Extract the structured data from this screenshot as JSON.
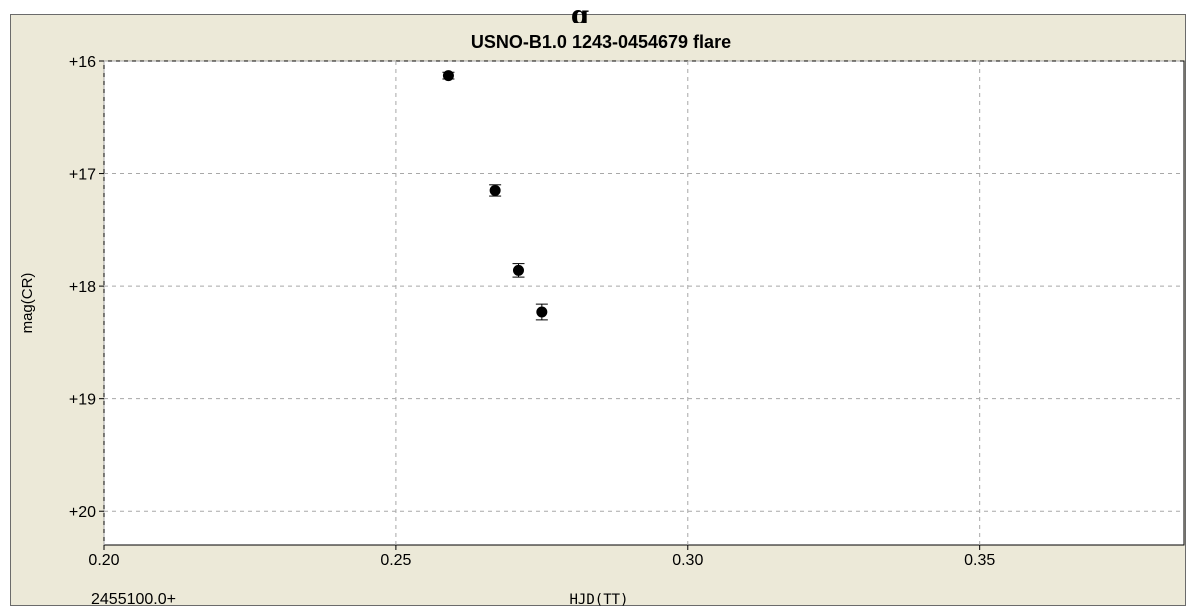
{
  "header_fragment": "g",
  "chart_data": {
    "type": "scatter",
    "title": "USNO-B1.0 1243-0454679 flare",
    "xlabel": "HJD(TT)",
    "ylabel": "mag(CR)",
    "x_prefix": "2455100.0+",
    "xlim": [
      0.2,
      0.385
    ],
    "ylim": [
      16.0,
      20.3
    ],
    "y_inverted": true,
    "x_ticks": [
      "0.20",
      "0.25",
      "0.30",
      "0.35"
    ],
    "y_ticks": [
      "+16",
      "+17",
      "+18",
      "+19",
      "+20"
    ],
    "grid": true,
    "points": [
      {
        "x": 0.259,
        "y": 16.13,
        "err": 0.03
      },
      {
        "x": 0.267,
        "y": 17.15,
        "err": 0.05
      },
      {
        "x": 0.271,
        "y": 17.86,
        "err": 0.06
      },
      {
        "x": 0.275,
        "y": 18.23,
        "err": 0.07
      }
    ]
  }
}
